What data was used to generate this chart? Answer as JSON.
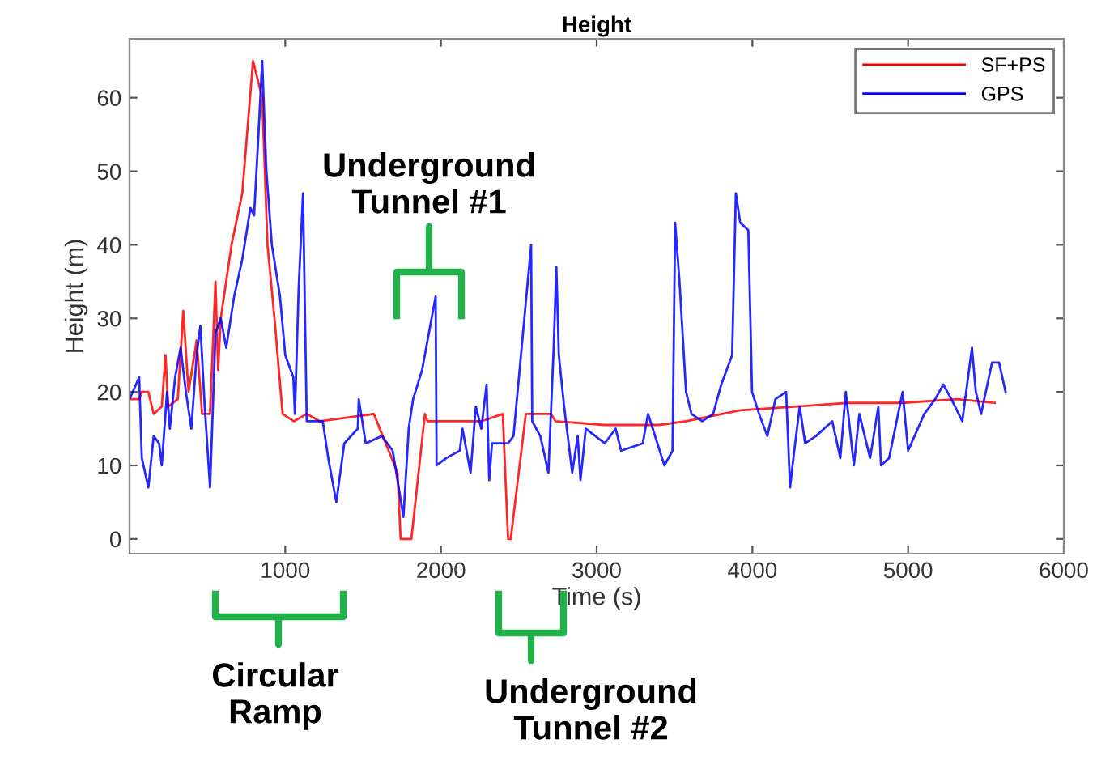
{
  "chart_data": {
    "type": "line",
    "title": "Height",
    "xlabel": "Time (s)",
    "ylabel": "Height (m)",
    "xlim": [
      0,
      6000
    ],
    "ylim": [
      -2,
      68
    ],
    "xticks": [
      1000,
      2000,
      3000,
      4000,
      5000,
      6000
    ],
    "yticks": [
      0,
      10,
      20,
      30,
      40,
      50,
      60
    ],
    "grid": false,
    "legend": "top right",
    "annotations": [
      "Underground\nTunnel #1",
      "Circular\nRamp",
      "Underground\nTunnel #2"
    ],
    "series": [
      {
        "name": "SF+PS",
        "color": "#ff0000",
        "x": [
          0,
          62,
          79,
          121,
          155,
          207,
          231,
          248,
          310,
          345,
          379,
          431,
          466,
          517,
          552,
          569,
          586,
          655,
          724,
          793,
          852,
          886,
          931,
          983,
          1055,
          1138,
          1224,
          1569,
          1721,
          1741,
          1810,
          1897,
          1914,
          1983,
          2259,
          2397,
          2431,
          2448,
          2545,
          2569,
          2707,
          2736,
          3052,
          3400,
          3574,
          3922,
          4270,
          4617,
          4965,
          5313,
          5556
        ],
        "values": [
          19,
          19,
          20,
          20,
          17,
          18,
          25,
          18,
          19,
          31,
          20,
          27,
          17,
          17,
          35,
          23,
          30,
          40,
          47,
          65,
          60,
          40,
          30,
          17,
          16,
          17,
          16,
          17,
          9,
          0,
          0,
          17,
          16,
          16,
          16,
          17,
          0,
          0,
          17,
          17,
          17,
          16,
          15.5,
          15.5,
          16,
          17.5,
          18,
          18.5,
          18.5,
          19,
          18.5
        ]
      },
      {
        "name": "GPS",
        "color": "#0000ff",
        "x": [
          0,
          62,
          79,
          121,
          155,
          190,
          207,
          241,
          259,
          293,
          328,
          362,
          397,
          431,
          455,
          483,
          517,
          552,
          586,
          621,
          672,
          724,
          776,
          800,
          828,
          852,
          879,
          914,
          966,
          1000,
          1052,
          1062,
          1086,
          1114,
          1138,
          1241,
          1276,
          1328,
          1379,
          1466,
          1472,
          1517,
          1621,
          1690,
          1759,
          1793,
          1821,
          1879,
          1966,
          1972,
          2034,
          2121,
          2138,
          2190,
          2224,
          2259,
          2293,
          2310,
          2328,
          2431,
          2466,
          2579,
          2586,
          2638,
          2690,
          2724,
          2741,
          2757,
          2791,
          2843,
          2878,
          2896,
          2930,
          3052,
          3122,
          3157,
          3296,
          3330,
          3435,
          3487,
          3504,
          3532,
          3574,
          3609,
          3678,
          3748,
          3800,
          3870,
          3894,
          3922,
          3974,
          3998,
          4043,
          4096,
          4148,
          4217,
          4242,
          4269,
          4304,
          4339,
          4409,
          4513,
          4565,
          4600,
          4652,
          4687,
          4756,
          4809,
          4826,
          4878,
          4965,
          5000,
          5104,
          5174,
          5226,
          5278,
          5348,
          5410,
          5435,
          5469,
          5539,
          5584,
          5626
        ],
        "values": [
          19,
          22,
          11,
          7,
          14,
          13,
          10,
          20,
          15,
          22,
          26,
          20,
          15,
          25,
          29,
          18,
          7,
          28,
          30,
          26,
          33,
          38,
          45,
          44,
          55,
          65,
          50,
          40,
          33,
          25,
          22,
          17,
          34,
          47,
          16,
          16,
          11,
          5,
          13,
          15,
          19,
          13,
          14,
          12,
          3,
          15,
          19,
          23,
          33,
          10,
          11,
          12,
          15,
          9,
          18,
          15,
          21,
          8,
          13,
          13,
          14,
          40,
          16,
          14,
          9,
          26,
          37,
          25,
          18,
          9,
          14,
          8,
          15,
          13,
          15,
          12,
          13,
          17,
          10,
          12,
          43,
          35,
          20,
          17,
          16,
          17,
          21,
          25,
          47,
          43,
          42,
          20,
          17,
          14,
          19,
          20,
          7,
          12,
          18,
          13,
          14,
          16,
          11,
          20,
          10,
          17,
          11,
          18,
          10,
          11,
          20,
          12,
          17,
          19,
          21,
          19,
          16,
          26,
          20,
          17,
          24,
          24,
          20
        ]
      }
    ]
  }
}
